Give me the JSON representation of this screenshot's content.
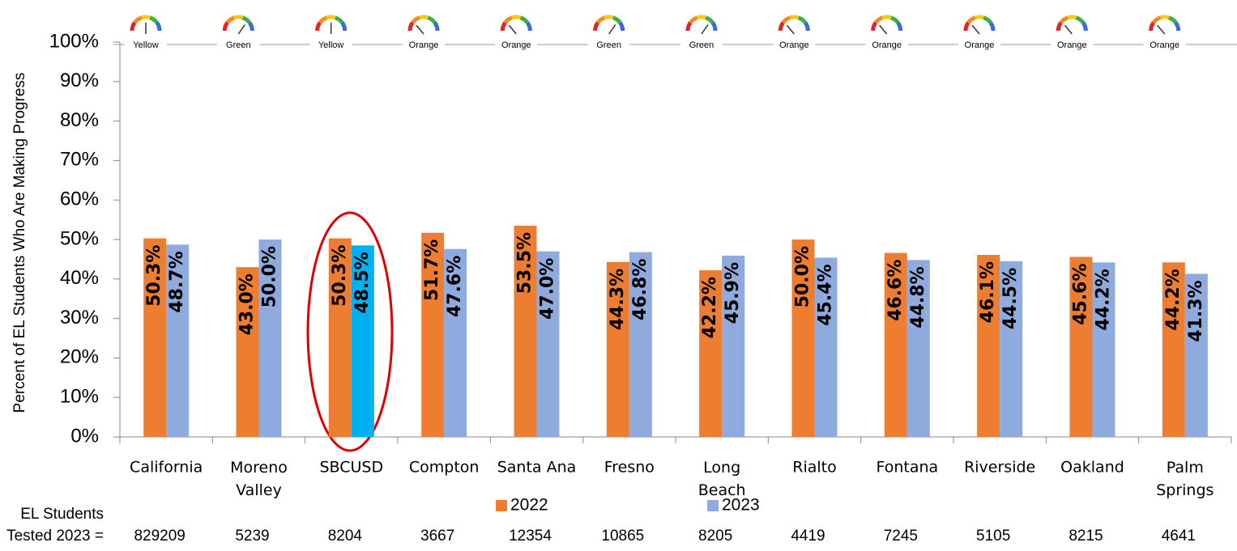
{
  "chart_data": {
    "type": "bar",
    "ylabel": "Percent of EL Students Who Are Making Progress",
    "categories": [
      "California",
      "Moreno Valley",
      "SBCUSD",
      "Compton",
      "Santa Ana",
      "Fresno",
      "Long Beach",
      "Rialto",
      "Fontana",
      "Riverside",
      "Oakland",
      "Palm Springs"
    ],
    "series": [
      {
        "name": "2022",
        "color": "#ED7D31",
        "values": [
          50.3,
          43.0,
          50.3,
          51.7,
          53.5,
          44.3,
          42.2,
          50.0,
          46.6,
          46.1,
          45.6,
          44.2
        ],
        "value_labels": [
          "50.3%",
          "43.0%",
          "50.3%",
          "51.7%",
          "53.5%",
          "44.3%",
          "42.2%",
          "50.0%",
          "46.6%",
          "46.1%",
          "45.6%",
          "44.2%"
        ]
      },
      {
        "name": "2023",
        "color": "#8FAADC",
        "colors": [
          "#8FAADC",
          "#8FAADC",
          "#00B0F0",
          "#8FAADC",
          "#8FAADC",
          "#8FAADC",
          "#8FAADC",
          "#8FAADC",
          "#8FAADC",
          "#8FAADC",
          "#8FAADC",
          "#8FAADC"
        ],
        "values": [
          48.7,
          50.0,
          48.5,
          47.6,
          47.0,
          46.8,
          45.9,
          45.4,
          44.8,
          44.5,
          44.2,
          41.3
        ],
        "value_labels": [
          "48.7%",
          "50.0%",
          "48.5%",
          "47.6%",
          "47.0%",
          "46.8%",
          "45.9%",
          "45.4%",
          "44.8%",
          "44.5%",
          "44.2%",
          "41.3%"
        ]
      }
    ],
    "ylim": [
      0,
      100
    ],
    "yticks": [
      {
        "value": 0,
        "label": "0%"
      },
      {
        "value": 10,
        "label": "10%"
      },
      {
        "value": 20,
        "label": "20%"
      },
      {
        "value": 30,
        "label": "30%"
      },
      {
        "value": 40,
        "label": "40%"
      },
      {
        "value": 50,
        "label": "50%"
      },
      {
        "value": 60,
        "label": "60%"
      },
      {
        "value": 70,
        "label": "70%"
      },
      {
        "value": 80,
        "label": "80%"
      },
      {
        "value": 90,
        "label": "90%"
      },
      {
        "value": 100,
        "label": "100%"
      }
    ],
    "ratings": [
      "Yellow",
      "Green",
      "Yellow",
      "Orange",
      "Orange",
      "Green",
      "Green",
      "Orange",
      "Orange",
      "Orange",
      "Orange",
      "Orange"
    ],
    "tested_label": [
      "EL Students",
      "Tested 2023 ="
    ],
    "tested": [
      829209,
      5239,
      8204,
      3667,
      12354,
      10865,
      8205,
      4419,
      7245,
      5105,
      8215,
      4641
    ]
  }
}
